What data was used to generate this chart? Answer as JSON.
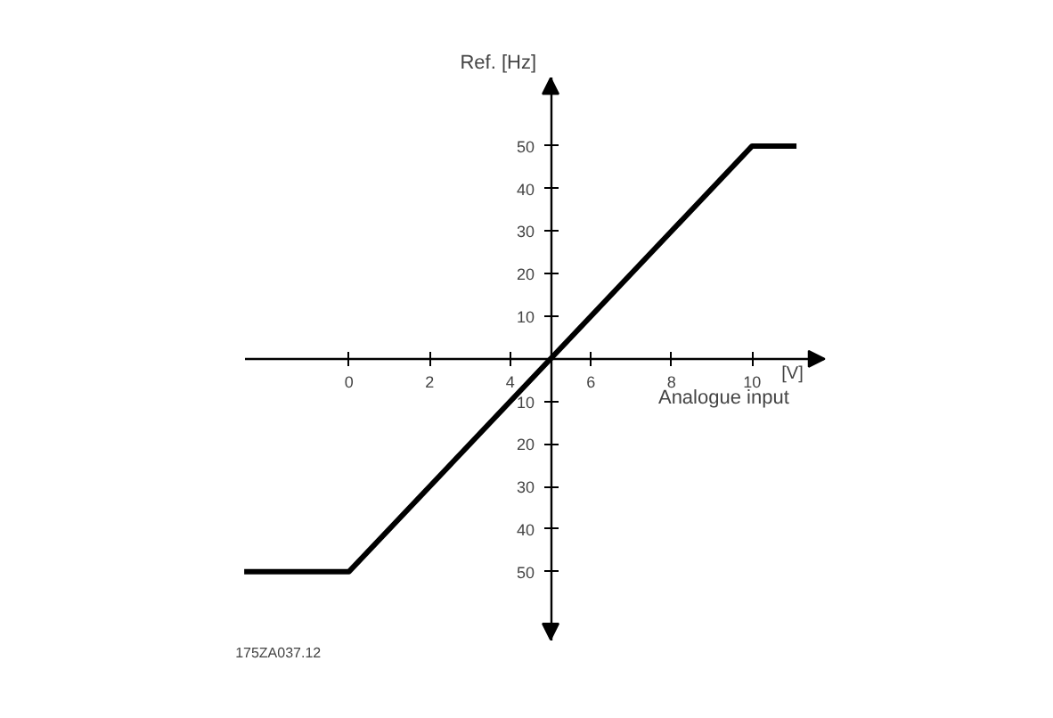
{
  "chart_data": {
    "type": "line",
    "xlabel": "Analogue input",
    "ylabel": "Ref. [Hz]",
    "annotations": [
      "[V]",
      "175ZA037.12"
    ],
    "x": [
      -2.6,
      0,
      10,
      11.1
    ],
    "series": [
      {
        "color": "#000000",
        "values": [
          -50,
          -50,
          50,
          50
        ]
      }
    ],
    "xlim": [
      -2.6,
      11.8
    ],
    "ylim": [
      -66,
      66
    ],
    "xticks": [
      0,
      2,
      4,
      6,
      8,
      10
    ],
    "yticks": [
      {
        "value": -50,
        "label": "50"
      },
      {
        "value": -40,
        "label": "40"
      },
      {
        "value": -30,
        "label": "30"
      },
      {
        "value": -20,
        "label": "20"
      },
      {
        "value": -10,
        "label": "10"
      },
      10,
      20,
      30,
      40,
      50
    ],
    "grid": false,
    "marker": "none",
    "line_style": "solid"
  }
}
